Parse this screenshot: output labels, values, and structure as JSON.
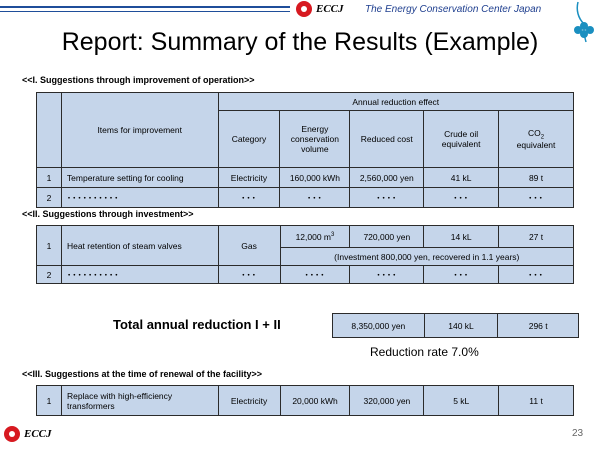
{
  "header": {
    "brand": "ECCJ",
    "org": "The Energy Conservation Center Japan",
    "title": "Report: Summary of the Results (Example)"
  },
  "section1": {
    "heading": "<<I. Suggestions through improvement of operation>>",
    "col_items": "Items for improvement",
    "col_group": "Annual reduction effect",
    "col_category": "Category",
    "col_energy": "Energy conservation volume",
    "col_cost": "Reduced cost",
    "col_crude": "Crude oil equivalent",
    "col_co2": "CO",
    "col_co2_sub": "2",
    "col_co2_tail": " equivalent",
    "rows": [
      {
        "no": "1",
        "item": "Temperature setting for cooling",
        "category": "Electricity",
        "energy": "160,000 kWh",
        "cost": "2,560,000 yen",
        "crude": "41 kL",
        "co2": "89 t"
      },
      {
        "no": "2",
        "item": "･･････････",
        "category": "･･･",
        "energy": "･･･",
        "cost": "････",
        "crude": "･･･",
        "co2": "･･･"
      }
    ]
  },
  "section2": {
    "heading": "<<II. Suggestions through investment>>",
    "rows": [
      {
        "no": "1",
        "item": "Heat retention of steam valves",
        "category": "Gas",
        "energy": "12,000 m",
        "energy_sup": "3",
        "cost": "720,000 yen",
        "crude": "14 kL",
        "co2": "27 t",
        "note": "(Investment 800,000 yen, recovered in 1.1 years)"
      },
      {
        "no": "2",
        "item": "･･････････",
        "category": "･･･",
        "energy": "････",
        "cost": "････",
        "crude": "･･･",
        "co2": "･･･"
      }
    ]
  },
  "total": {
    "label": "Total annual reduction  I + II",
    "cost": "8,350,000 yen",
    "crude": "140 kL",
    "co2": "296 t",
    "rate": "Reduction rate 7.0%"
  },
  "section3": {
    "heading": "<<III. Suggestions at the time of renewal of the facility>>",
    "rows": [
      {
        "no": "1",
        "item": "Replace with high-efficiency transformers",
        "category": "Electricity",
        "energy": "20,000 kWh",
        "cost": "320,000 yen",
        "crude": "5 kL",
        "co2": "11 t"
      }
    ]
  },
  "footer": {
    "page": "23",
    "brand": "ECCJ"
  },
  "colors": {
    "accent": "#1f4e9a",
    "table_fill": "#c5d5ea",
    "logo_red": "#d71920",
    "clover": "#1a8fc0"
  }
}
